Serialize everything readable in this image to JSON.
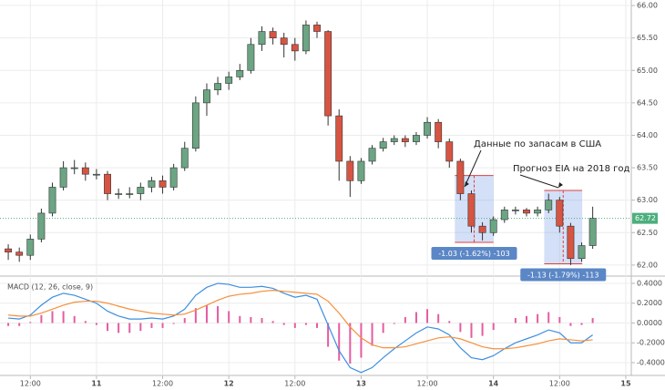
{
  "chart_data": [
    {
      "type": "candlestick",
      "x": [
        8,
        10,
        12,
        14,
        16,
        18,
        20,
        22,
        24,
        26,
        28,
        30,
        32,
        34,
        36,
        38,
        40,
        42,
        44,
        46,
        48,
        50,
        52,
        54,
        56,
        58,
        60,
        62,
        64,
        66,
        68,
        70,
        72,
        74,
        76,
        78,
        80,
        82,
        84,
        86,
        88,
        90,
        92,
        94,
        96,
        98,
        100,
        102,
        104,
        106,
        108,
        110,
        112,
        114
      ],
      "open": [
        62.25,
        62.2,
        62.15,
        62.4,
        62.8,
        63.2,
        63.5,
        63.5,
        63.4,
        63.4,
        63.1,
        63.1,
        63.1,
        63.2,
        63.3,
        63.2,
        63.5,
        63.8,
        64.5,
        64.7,
        64.8,
        64.9,
        65.0,
        65.4,
        65.6,
        65.5,
        65.4,
        65.3,
        65.7,
        65.6,
        64.3,
        63.6,
        63.3,
        63.6,
        63.8,
        63.9,
        63.95,
        63.9,
        64.0,
        64.2,
        63.9,
        63.6,
        63.1,
        62.6,
        62.5,
        62.7,
        62.85,
        62.85,
        62.8,
        62.85,
        63.0,
        62.6,
        62.1,
        62.3
      ],
      "high": [
        62.32,
        62.27,
        62.47,
        62.87,
        63.27,
        63.6,
        63.62,
        63.58,
        63.48,
        63.45,
        63.18,
        63.2,
        63.27,
        63.36,
        63.38,
        63.56,
        63.9,
        64.6,
        64.8,
        64.9,
        64.98,
        65.1,
        65.5,
        65.68,
        65.66,
        65.58,
        65.5,
        65.77,
        65.75,
        65.62,
        64.4,
        63.68,
        63.65,
        63.85,
        63.96,
        64.0,
        64.0,
        64.05,
        64.28,
        64.25,
        63.95,
        63.64,
        63.15,
        62.66,
        62.75,
        62.9,
        62.9,
        62.88,
        62.9,
        63.1,
        63.05,
        62.65,
        62.35,
        62.9
      ],
      "low": [
        62.08,
        62.05,
        62.08,
        62.35,
        62.75,
        63.15,
        63.4,
        63.3,
        63.32,
        63.0,
        63.02,
        63.03,
        63.0,
        63.12,
        63.1,
        63.15,
        63.45,
        63.75,
        64.3,
        64.62,
        64.7,
        64.85,
        64.95,
        65.3,
        65.4,
        65.2,
        65.15,
        65.25,
        65.5,
        64.15,
        63.3,
        63.05,
        63.25,
        63.55,
        63.75,
        63.85,
        63.82,
        63.85,
        63.95,
        63.8,
        63.5,
        63.0,
        62.5,
        62.38,
        62.45,
        62.65,
        62.78,
        62.75,
        62.75,
        62.8,
        62.5,
        62.0,
        62.05,
        62.25
      ],
      "close": [
        62.2,
        62.15,
        62.4,
        62.8,
        63.2,
        63.5,
        63.5,
        63.4,
        63.4,
        63.1,
        63.1,
        63.1,
        63.2,
        63.3,
        63.2,
        63.5,
        63.8,
        64.5,
        64.7,
        64.8,
        64.9,
        65.0,
        65.4,
        65.6,
        65.5,
        65.4,
        65.3,
        65.7,
        65.6,
        64.3,
        63.6,
        63.3,
        63.6,
        63.8,
        63.9,
        63.95,
        63.9,
        64.0,
        64.2,
        63.9,
        63.6,
        63.1,
        62.6,
        62.5,
        62.7,
        62.85,
        62.85,
        62.8,
        62.85,
        63.0,
        62.6,
        62.1,
        62.3,
        62.72
      ],
      "up_color": "#6ba583",
      "down_color": "#d75442",
      "xlim": [
        6.5,
        121
      ],
      "xticks": [
        12,
        24,
        36,
        48,
        60,
        72,
        84,
        96,
        108,
        120
      ],
      "ylim": [
        61.83,
        66.085
      ],
      "yticks": [
        {
          "value": 66,
          "label": "66.00"
        },
        {
          "value": 65.5,
          "label": "65.50"
        },
        {
          "value": 65,
          "label": "65.00"
        },
        {
          "value": 64.5,
          "label": "64.50"
        },
        {
          "value": 64,
          "label": "64.00"
        },
        {
          "value": 63.5,
          "label": "63.50"
        },
        {
          "value": 63,
          "label": "63.00"
        },
        {
          "value": 62.5,
          "label": "62.50"
        },
        {
          "value": 62,
          "label": "62.00"
        }
      ],
      "grid": true,
      "last_price": 62.72,
      "last_price_color": "#4caf7d",
      "annotations": [
        "Данные по запасам в США",
        "Прогноз EIA на 2018 год"
      ],
      "measures": [
        {
          "label": "-1.03 (-1.62%) -103",
          "x": [
            89,
            96
          ],
          "y": [
            63.38,
            62.35
          ]
        },
        {
          "label": "-1.13 (-1.79%) -113",
          "x": [
            105.2,
            112.1
          ],
          "y": [
            63.15,
            62.02
          ]
        }
      ]
    },
    {
      "type": "macd",
      "title": "MACD (12, 26, close, 9)",
      "x": [
        8,
        10,
        12,
        14,
        16,
        18,
        20,
        22,
        24,
        26,
        28,
        30,
        32,
        34,
        36,
        38,
        40,
        42,
        44,
        46,
        48,
        50,
        52,
        54,
        56,
        58,
        60,
        62,
        64,
        66,
        68,
        70,
        72,
        74,
        76,
        78,
        80,
        82,
        84,
        86,
        88,
        90,
        92,
        94,
        96,
        98,
        100,
        102,
        104,
        106,
        108,
        110,
        112,
        114
      ],
      "series": [
        {
          "name": "histogram",
          "color": "#e45ca2",
          "values": [
            -0.03,
            -0.03,
            0.01,
            0.08,
            0.12,
            0.12,
            0.07,
            0.02,
            -0.02,
            -0.08,
            -0.1,
            -0.1,
            -0.08,
            -0.05,
            -0.05,
            -0.01,
            0.05,
            0.15,
            0.18,
            0.17,
            0.12,
            0.07,
            0.06,
            0.05,
            0.02,
            -0.02,
            -0.05,
            -0.02,
            -0.05,
            -0.24,
            -0.38,
            -0.41,
            -0.35,
            -0.23,
            -0.1,
            -0.01,
            0.06,
            0.11,
            0.14,
            0.09,
            0.02,
            -0.09,
            -0.15,
            -0.13,
            -0.07,
            0.0,
            0.05,
            0.07,
            0.09,
            0.11,
            0.06,
            -0.03,
            -0.02,
            0.05
          ]
        },
        {
          "name": "macd",
          "color": "#3d8fe0",
          "values": [
            0.05,
            0.04,
            0.08,
            0.18,
            0.26,
            0.3,
            0.28,
            0.24,
            0.2,
            0.12,
            0.07,
            0.04,
            0.04,
            0.05,
            0.04,
            0.07,
            0.14,
            0.28,
            0.36,
            0.4,
            0.39,
            0.36,
            0.36,
            0.37,
            0.35,
            0.3,
            0.26,
            0.28,
            0.24,
            -0.02,
            -0.28,
            -0.45,
            -0.5,
            -0.45,
            -0.35,
            -0.26,
            -0.18,
            -0.1,
            -0.04,
            -0.06,
            -0.12,
            -0.25,
            -0.35,
            -0.37,
            -0.33,
            -0.26,
            -0.2,
            -0.16,
            -0.12,
            -0.07,
            -0.1,
            -0.2,
            -0.2,
            -0.12
          ]
        },
        {
          "name": "signal",
          "color": "#f5903d",
          "values": [
            0.08,
            0.07,
            0.07,
            0.1,
            0.14,
            0.18,
            0.21,
            0.22,
            0.22,
            0.2,
            0.17,
            0.14,
            0.12,
            0.1,
            0.09,
            0.08,
            0.09,
            0.13,
            0.18,
            0.23,
            0.27,
            0.29,
            0.3,
            0.32,
            0.33,
            0.32,
            0.31,
            0.3,
            0.29,
            0.22,
            0.1,
            -0.04,
            -0.15,
            -0.22,
            -0.25,
            -0.25,
            -0.24,
            -0.21,
            -0.18,
            -0.15,
            -0.14,
            -0.16,
            -0.2,
            -0.24,
            -0.26,
            -0.26,
            -0.25,
            -0.23,
            -0.21,
            -0.18,
            -0.16,
            -0.17,
            -0.18,
            -0.17
          ]
        }
      ],
      "xlim": [
        6.5,
        121
      ],
      "xticks": [
        {
          "value": 12,
          "label": "12:00"
        },
        {
          "value": 24,
          "label": "11"
        },
        {
          "value": 36,
          "label": "12:00"
        },
        {
          "value": 48,
          "label": "12"
        },
        {
          "value": 60,
          "label": "12:00"
        },
        {
          "value": 72,
          "label": "13"
        },
        {
          "value": 84,
          "label": "12:00"
        },
        {
          "value": 96,
          "label": "14"
        },
        {
          "value": 108,
          "label": "12:00"
        },
        {
          "value": 120,
          "label": "15"
        }
      ],
      "ylim": [
        -0.529,
        0.455
      ],
      "yticks": [
        {
          "value": 0.4,
          "label": "0.4000"
        },
        {
          "value": 0.2,
          "label": "0.2000"
        },
        {
          "value": 0,
          "label": "0.0000"
        },
        {
          "value": -0.2,
          "label": "-0.2000"
        },
        {
          "value": -0.4,
          "label": "-0.4000"
        }
      ],
      "grid": true
    }
  ]
}
